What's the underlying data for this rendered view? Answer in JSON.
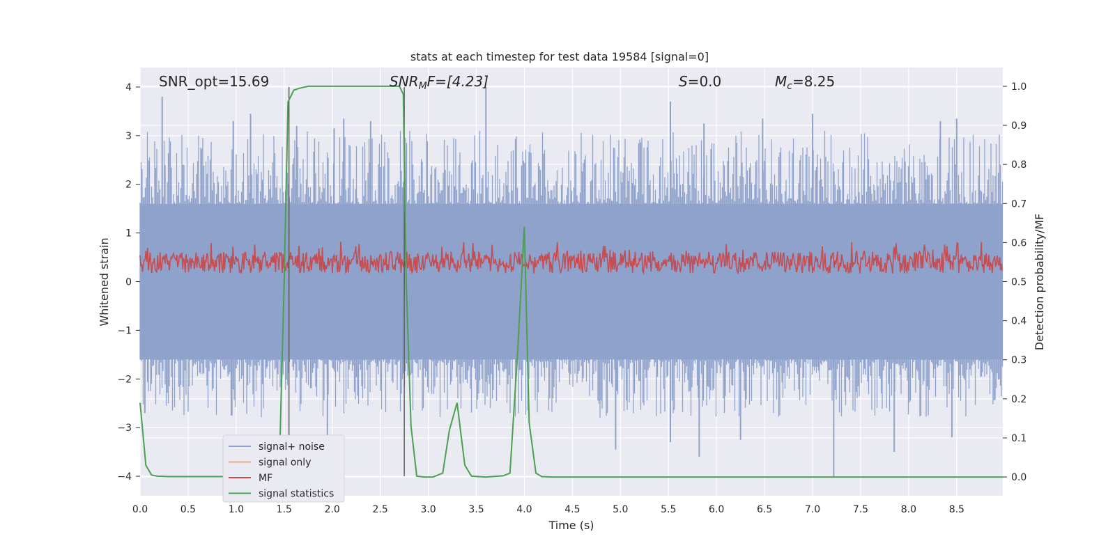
{
  "chart_data": {
    "type": "line",
    "title": "stats at each timestep for test data 19584 [signal=0]",
    "xlabel": "Time (s)",
    "ylabel": "Whitened strain",
    "ylabel_right": "Detection probability/MF",
    "xlim": [
      0,
      8.98
    ],
    "ylim": [
      -4.4,
      4.4
    ],
    "ylim_right": [
      -0.048,
      1.048
    ],
    "x_ticks": [
      "0.0",
      "0.5",
      "1.0",
      "1.5",
      "2.0",
      "2.5",
      "3.0",
      "3.5",
      "4.0",
      "4.5",
      "5.0",
      "5.5",
      "6.0",
      "6.5",
      "7.0",
      "7.5",
      "8.0",
      "8.5"
    ],
    "x_tick_values": [
      0,
      0.5,
      1,
      1.5,
      2,
      2.5,
      3,
      3.5,
      4,
      4.5,
      5,
      5.5,
      6,
      6.5,
      7,
      7.5,
      8,
      8.5
    ],
    "y_ticks": [
      "−4",
      "−3",
      "−2",
      "−1",
      "0",
      "1",
      "2",
      "3",
      "4"
    ],
    "y_tick_values": [
      -4,
      -3,
      -2,
      -1,
      0,
      1,
      2,
      3,
      4
    ],
    "y_right_ticks": [
      "0.0",
      "0.1",
      "0.2",
      "0.3",
      "0.4",
      "0.5",
      "0.6",
      "0.7",
      "0.8",
      "0.9",
      "1.0"
    ],
    "y_right_tick_values": [
      0,
      0.1,
      0.2,
      0.3,
      0.4,
      0.5,
      0.6,
      0.7,
      0.8,
      0.9,
      1.0
    ],
    "grid": true,
    "legend_position": "lower-left",
    "annotations": {
      "snr_opt": "SNR_opt=15.69",
      "snr_mf": "SNR",
      "snr_mf_sub": "M",
      "snr_mf_rest": "F=[4.23]",
      "s_var": "S",
      "s_rest": "=0.0",
      "mc_var": "M",
      "mc_sub": "c",
      "mc_rest": "=8.25"
    },
    "vlines": [
      1.55,
      2.75
    ],
    "vline_range": [
      -4,
      4
    ],
    "series": [
      {
        "name": "signal+ noise",
        "color": "#8ea2cc",
        "axis": "left",
        "description": "noise band",
        "band_core": [
          -1.6,
          1.6
        ],
        "peaks": [
          [
            0.23,
            3.8
          ],
          [
            0.97,
            3.3
          ],
          [
            1.15,
            3.45
          ],
          [
            1.63,
            3.2
          ],
          [
            2.02,
            3.15
          ],
          [
            2.12,
            3.35
          ],
          [
            2.4,
            3.3
          ],
          [
            3.6,
            4.0
          ],
          [
            5.52,
            3.7
          ],
          [
            5.87,
            3.25
          ],
          [
            6.48,
            3.35
          ],
          [
            7.0,
            3.45
          ],
          [
            8.33,
            3.3
          ],
          [
            8.5,
            3.35
          ]
        ],
        "troughs": [
          [
            0.05,
            -2.7
          ],
          [
            0.95,
            -2.75
          ],
          [
            1.95,
            -3.3
          ],
          [
            4.95,
            -3.45
          ],
          [
            5.52,
            -3.3
          ],
          [
            5.82,
            -3.6
          ],
          [
            6.25,
            -3.25
          ],
          [
            7.22,
            -4.0
          ],
          [
            7.85,
            -3.5
          ],
          [
            8.45,
            -3.2
          ]
        ]
      },
      {
        "name": "signal only",
        "color": "#e8a690",
        "axis": "left",
        "values": []
      },
      {
        "name": "MF",
        "color": "#c44e52",
        "axis": "left",
        "band": [
          0.05,
          0.7
        ],
        "description": "matched filter trace oscillating around 0.3"
      },
      {
        "name": "signal statistics",
        "color": "#4ba04f",
        "axis": "right",
        "x": [
          0.0,
          0.06,
          0.12,
          0.18,
          0.3,
          0.6,
          0.9,
          1.2,
          1.35,
          1.45,
          1.5,
          1.54,
          1.6,
          1.66,
          1.75,
          1.85,
          2.0,
          2.3,
          2.6,
          2.7,
          2.74,
          2.77,
          2.82,
          2.88,
          2.96,
          3.05,
          3.15,
          3.22,
          3.3,
          3.38,
          3.45,
          3.6,
          3.78,
          3.85,
          3.93,
          4.0,
          4.05,
          4.12,
          4.18,
          4.3,
          5.0,
          6.0,
          7.0,
          8.0,
          8.98
        ],
        "y": [
          0.19,
          0.03,
          0.005,
          0.002,
          0.001,
          0.001,
          0.001,
          0.002,
          0.005,
          0.03,
          0.5,
          0.96,
          0.99,
          0.995,
          1.0,
          1.0,
          1.0,
          1.0,
          1.0,
          1.0,
          0.98,
          0.5,
          0.13,
          0.002,
          0.0,
          0.0,
          0.01,
          0.12,
          0.19,
          0.03,
          0.002,
          0.0,
          0.003,
          0.01,
          0.32,
          0.64,
          0.14,
          0.01,
          0.001,
          0.0,
          0.0,
          0.0,
          0.0,
          0.0,
          0.0
        ]
      }
    ]
  },
  "colors": {
    "plot_bg": "#eaeaf2",
    "grid": "#ffffff",
    "vline": "#555555"
  }
}
